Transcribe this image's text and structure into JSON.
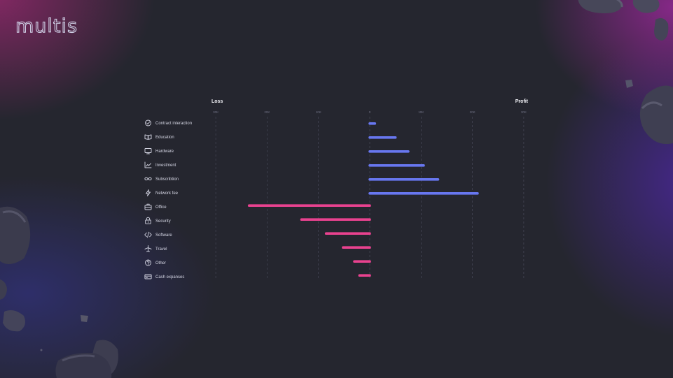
{
  "brand": {
    "logo_text": "multis"
  },
  "colors": {
    "profit": "#6877f0",
    "loss": "#e9428f",
    "background": "#25262f"
  },
  "chart_data": {
    "type": "bar",
    "orientation": "horizontal",
    "title": "",
    "loss_label": "Loss",
    "profit_label": "Profit",
    "ticks": [
      {
        "value": -30000,
        "label": "30K"
      },
      {
        "value": -20000,
        "label": "20K"
      },
      {
        "value": -10000,
        "label": "10K"
      },
      {
        "value": 0,
        "label": "0"
      },
      {
        "value": 10000,
        "label": "10K"
      },
      {
        "value": 20000,
        "label": "20K"
      },
      {
        "value": 30000,
        "label": "30K"
      }
    ],
    "xlim": [
      -30000,
      30000
    ],
    "grid": true,
    "categories": [
      {
        "label": "Contract interaction",
        "icon": "check-circle-icon",
        "value": 1000
      },
      {
        "label": "Education",
        "icon": "book-icon",
        "value": 5000
      },
      {
        "label": "Hardware",
        "icon": "monitor-icon",
        "value": 7500
      },
      {
        "label": "Investment",
        "icon": "trend-up-icon",
        "value": 10500
      },
      {
        "label": "Subscribtion",
        "icon": "infinity-icon",
        "value": 13300
      },
      {
        "label": "Network fee",
        "icon": "lightning-icon",
        "value": 21000
      },
      {
        "label": "Office",
        "icon": "briefcase-icon",
        "value": -23500
      },
      {
        "label": "Security",
        "icon": "lock-icon",
        "value": -13300
      },
      {
        "label": "Software",
        "icon": "code-icon",
        "value": -8500
      },
      {
        "label": "Travel",
        "icon": "plane-icon",
        "value": -5200
      },
      {
        "label": "Other",
        "icon": "question-icon",
        "value": -3000
      },
      {
        "label": "Cash expanses",
        "icon": "card-icon",
        "value": -2000
      }
    ]
  }
}
